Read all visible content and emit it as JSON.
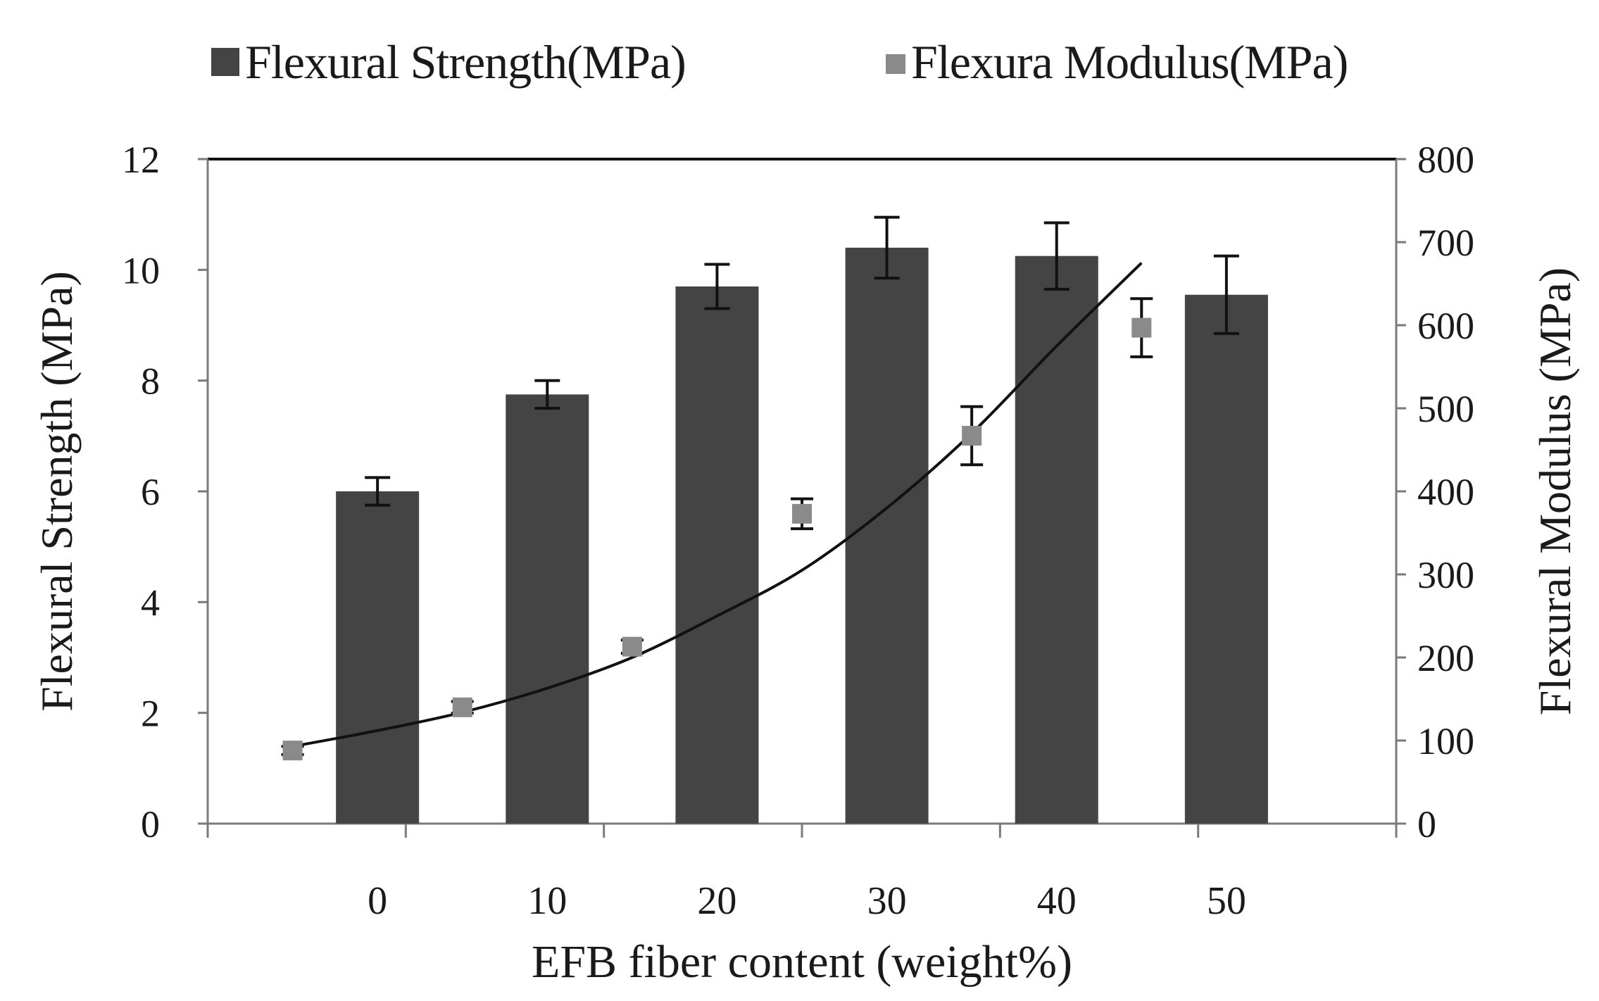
{
  "legend": {
    "strength_label": "Flexural Strength(MPa)",
    "modulus_label": "Flexura Modulus(MPa)"
  },
  "colors": {
    "bar": "#444444",
    "point": "#8a8a8a",
    "axis": "#7a7a7a",
    "text": "#1a1a1a"
  },
  "chart_data": {
    "type": "bar",
    "title": "",
    "xlabel": "EFB fiber content (weight%)",
    "ylabel": "Flexural Strength (MPa)",
    "y2label": "Flexural Modulus (MPa)",
    "ylim": [
      0,
      12
    ],
    "y2lim": [
      0,
      800
    ],
    "y_ticks": [
      "0",
      "2",
      "4",
      "6",
      "8",
      "10",
      "12"
    ],
    "y2_ticks": [
      "0",
      "100",
      "200",
      "300",
      "400",
      "500",
      "600",
      "700",
      "800"
    ],
    "categories": [
      "0",
      "10",
      "20",
      "30",
      "40",
      "50"
    ],
    "series": [
      {
        "name": "Flexural Strength(MPa)",
        "axis": "left",
        "kind": "bar",
        "values": [
          6.0,
          7.75,
          9.7,
          10.4,
          10.25,
          9.55
        ],
        "errors": [
          0.25,
          0.25,
          0.4,
          0.55,
          0.6,
          0.7
        ]
      },
      {
        "name": "Flexura Modulus(MPa)",
        "axis": "right",
        "kind": "scatter",
        "x": [
          -5,
          5,
          15,
          25,
          35,
          45
        ],
        "values": [
          88,
          140,
          213,
          373,
          467,
          597
        ],
        "errors": [
          5,
          7,
          8,
          18,
          35,
          35
        ]
      }
    ],
    "trendline": {
      "of": "Flexura Modulus(MPa)",
      "type": "exponential",
      "x": [
        -5,
        0,
        5,
        10,
        15,
        20,
        25,
        30,
        35,
        40,
        45
      ],
      "values": [
        93,
        112,
        134,
        163,
        200,
        250,
        305,
        380,
        470,
        575,
        675
      ]
    }
  }
}
